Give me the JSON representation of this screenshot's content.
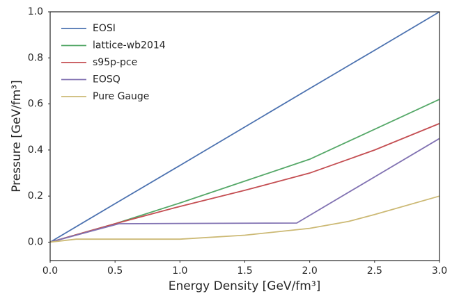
{
  "chart_data": {
    "type": "line",
    "xlabel": "Energy Density [GeV/fm³]",
    "ylabel": "Pressure [GeV/fm³]",
    "xlim": [
      0,
      3
    ],
    "ylim": [
      -0.08,
      1
    ],
    "xticks": [
      {
        "value": 0,
        "label": "0.0"
      },
      0.5,
      {
        "value": 1,
        "label": "1.0"
      },
      1.5,
      {
        "value": 2,
        "label": "2.0"
      },
      2.5,
      {
        "value": 3,
        "label": "3.0"
      }
    ],
    "yticks": [
      {
        "value": 0,
        "label": "0.0"
      },
      0.2,
      0.4,
      0.6,
      0.8,
      {
        "value": 1,
        "label": "1.0"
      }
    ],
    "legend": "upper left",
    "series": [
      {
        "name": "EOSI",
        "color": "#4c72b0",
        "x": [
          0,
          0.5,
          1,
          1.5,
          2,
          2.5,
          3
        ],
        "values": [
          0,
          0.167,
          0.333,
          0.5,
          0.667,
          0.833,
          1
        ]
      },
      {
        "name": "lattice-wb2014",
        "color": "#55a868",
        "x": [
          0,
          0.5,
          1,
          1.5,
          2,
          2.5,
          3
        ],
        "values": [
          0,
          0.08,
          0.17,
          0.265,
          0.36,
          0.49,
          0.62
        ]
      },
      {
        "name": "s95p-pce",
        "color": "#c44e52",
        "x": [
          0,
          0.5,
          1,
          1.5,
          2,
          2.5,
          3
        ],
        "values": [
          0,
          0.08,
          0.155,
          0.225,
          0.3,
          0.4,
          0.515
        ]
      },
      {
        "name": "EOSQ",
        "color": "#8172b2",
        "x": [
          0,
          0.53,
          1.9,
          3
        ],
        "values": [
          0,
          0.08,
          0.083,
          0.45
        ]
      },
      {
        "name": "Pure Gauge",
        "color": "#ccb974",
        "x": [
          0,
          0.2,
          1,
          1.5,
          2,
          2.3,
          2.5,
          3
        ],
        "values": [
          0,
          0.013,
          0.013,
          0.03,
          0.06,
          0.09,
          0.12,
          0.2
        ]
      }
    ]
  }
}
